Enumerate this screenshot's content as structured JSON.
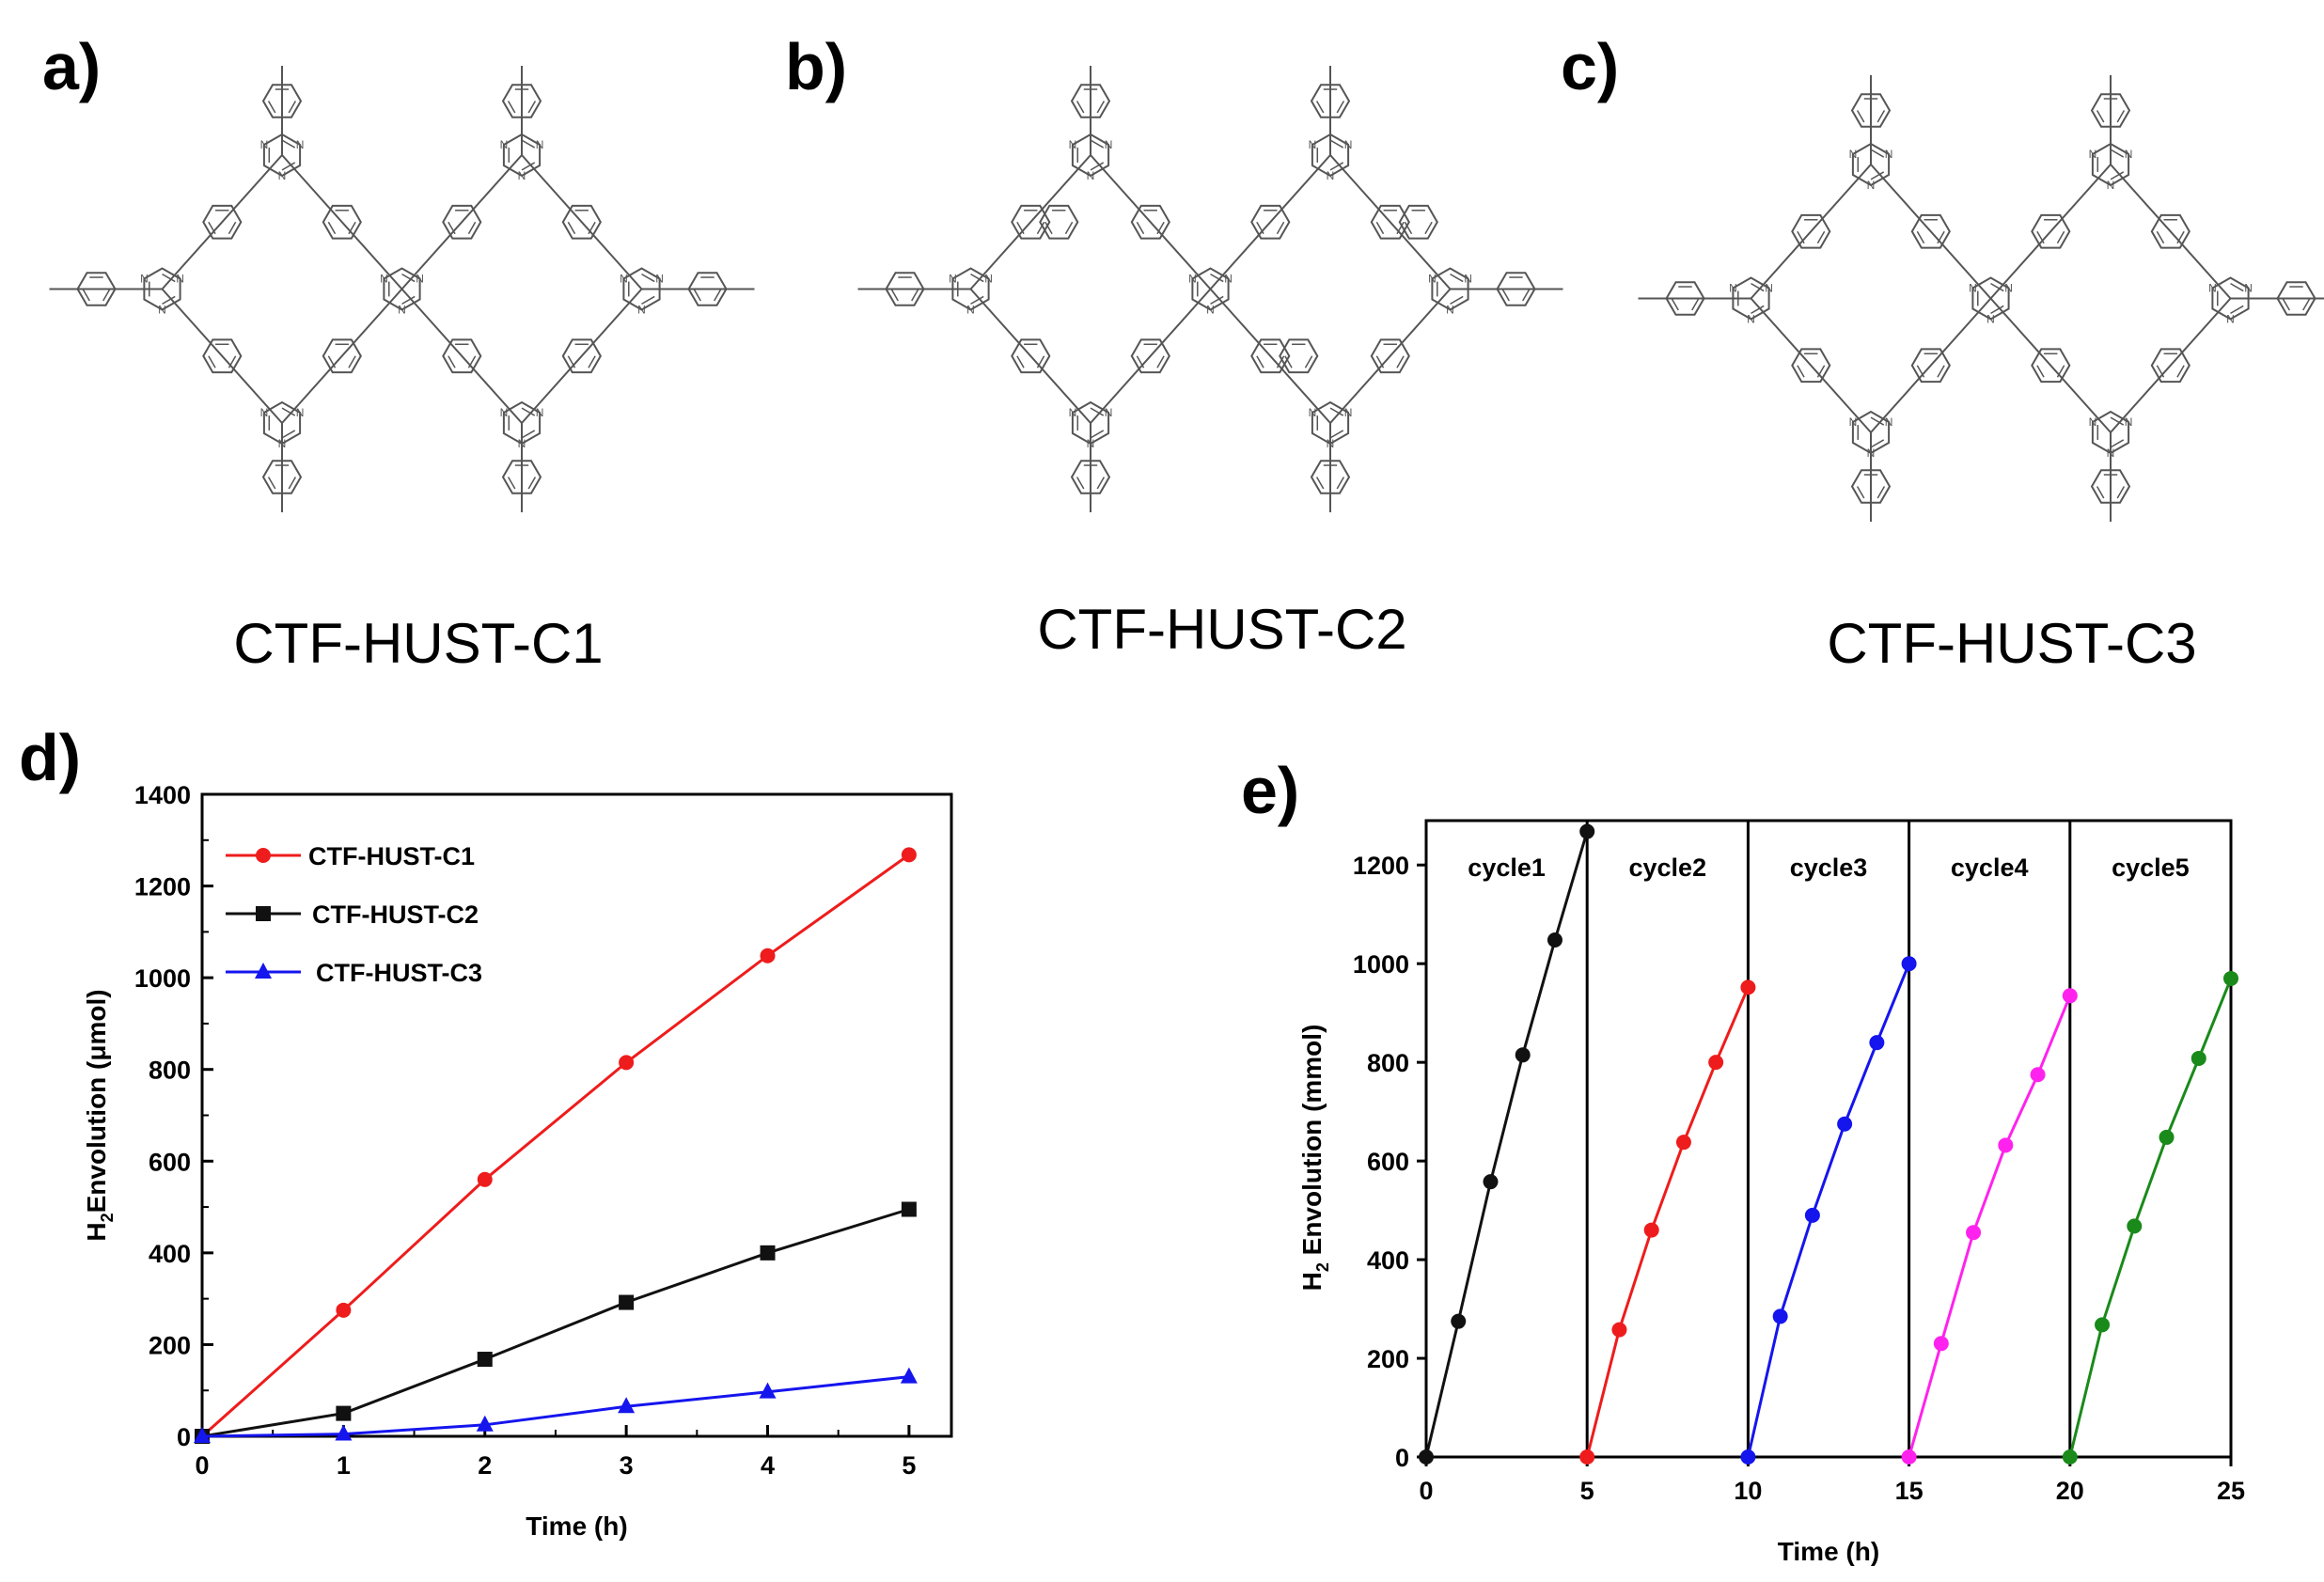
{
  "panels": {
    "a": {
      "letter": "a)",
      "title": "CTF-HUST-C1"
    },
    "b": {
      "letter": "b)",
      "title": "CTF-HUST-C2"
    },
    "c": {
      "letter": "c)",
      "title": "CTF-HUST-C3"
    },
    "d": {
      "letter": "d)"
    },
    "e": {
      "letter": "e)"
    }
  },
  "structure_atom_label": "N",
  "colors": {
    "red": "#ee1c1c",
    "black": "#111111",
    "blue": "#1515ee",
    "magenta": "#ff22ee",
    "green": "#1a8a1a",
    "structure": "#555555"
  },
  "chart_data": [
    {
      "id": "d",
      "type": "line",
      "xlabel": "Time (h)",
      "ylabel_main": "H",
      "ylabel_sub": "2",
      "ylabel_rest": "Envolution (μmol)",
      "xlim": [
        0,
        5.3
      ],
      "ylim": [
        0,
        1400
      ],
      "xticks": [
        0,
        1,
        2,
        3,
        4,
        5
      ],
      "yticks": [
        0,
        200,
        400,
        600,
        800,
        1000,
        1200,
        1400
      ],
      "legend_position": "top-left",
      "x": [
        0,
        1,
        2,
        3,
        4,
        5
      ],
      "series": [
        {
          "name": "CTF-HUST-C1",
          "color": "#ee1c1c",
          "marker": "circle",
          "values": [
            0,
            275,
            560,
            815,
            1048,
            1268
          ]
        },
        {
          "name": "CTF-HUST-C2",
          "color": "#111111",
          "marker": "square",
          "values": [
            0,
            50,
            168,
            292,
            400,
            495
          ]
        },
        {
          "name": "CTF-HUST-C3",
          "color": "#1515ee",
          "marker": "triangle",
          "values": [
            0,
            5,
            25,
            65,
            97,
            130
          ]
        }
      ]
    },
    {
      "id": "e",
      "type": "line",
      "xlabel": "Time (h)",
      "ylabel_main": "H",
      "ylabel_sub": "2",
      "ylabel_rest": " Envolution  (mmol)",
      "xlim": [
        0,
        25
      ],
      "ylim": [
        0,
        1290
      ],
      "xticks": [
        0,
        5,
        10,
        15,
        20,
        25
      ],
      "yticks": [
        0,
        200,
        400,
        600,
        800,
        1000,
        1200
      ],
      "dividers": [
        5,
        10,
        15,
        20
      ],
      "cycles": [
        {
          "label": "cycle1",
          "color": "#111111",
          "x": [
            0,
            1,
            2,
            3,
            4,
            5
          ],
          "values": [
            0,
            275,
            558,
            815,
            1048,
            1268
          ]
        },
        {
          "label": "cycle2",
          "color": "#ee1c1c",
          "x": [
            5,
            6,
            7,
            8,
            9,
            10
          ],
          "values": [
            0,
            258,
            460,
            638,
            800,
            952
          ]
        },
        {
          "label": "cycle3",
          "color": "#1515ee",
          "x": [
            10,
            11,
            12,
            13,
            14,
            15
          ],
          "values": [
            0,
            285,
            490,
            675,
            840,
            1000
          ]
        },
        {
          "label": "cycle4",
          "color": "#ff22ee",
          "x": [
            15,
            16,
            17,
            18,
            19,
            20
          ],
          "values": [
            0,
            230,
            455,
            632,
            775,
            935
          ]
        },
        {
          "label": "cycle5",
          "color": "#1a8a1a",
          "x": [
            20,
            21,
            22,
            23,
            24,
            25
          ],
          "values": [
            0,
            268,
            468,
            648,
            808,
            970
          ]
        }
      ]
    }
  ]
}
